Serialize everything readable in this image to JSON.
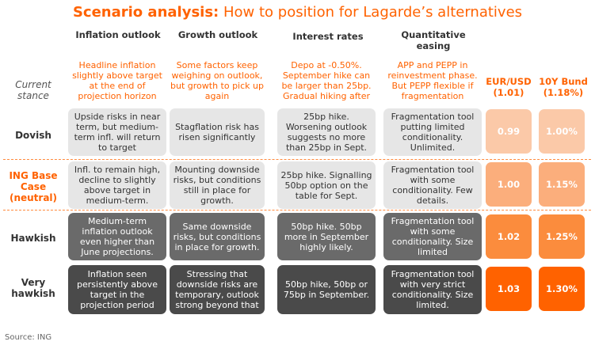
{
  "title": {
    "bold": "Scenario analysis:",
    "rest": "How to position for Lagarde’s alternatives"
  },
  "columns": {
    "inflation": "Inflation outlook",
    "growth": "Growth outlook",
    "rates": "Interest rates",
    "qe": "Quantitative easing",
    "eurusd": "EUR/USD (1.01)",
    "bund": "10Y Bund (1.18%)"
  },
  "rows": {
    "current": {
      "label": "Current stance",
      "inflation": "Headline inflation slightly above target at the end of projection horizon",
      "growth": "Some factors keep weighing on outlook, but growth to pick up again",
      "rates": "Depo at -0.50%. September hike can be larger than 25bp. Gradual hiking after",
      "qe": "APP and PEPP in reinvestment phase. But PEPP flexible if fragmentation"
    },
    "dovish": {
      "label": "Dovish",
      "inflation": "Upside risks in near term, but medium-term infl. will return to target",
      "growth": "Stagflation risk has risen significantly",
      "rates": "25bp hike. Worsening outlook suggests no more than 25bp in Sept.",
      "qe": "Fragmentation tool putting limited conditionality. Unlimited.",
      "eurusd": "0.99",
      "bund": "1.00%"
    },
    "base": {
      "label": "ING Base Case (neutral)",
      "inflation": "Infl. to remain high, decline to slightly above target in medium-term.",
      "growth": "Mounting downside risks, but conditions still in place for growth.",
      "rates": "25bp hike. Signalling 50bp option on the table for Sept.",
      "qe": "Fragmentation tool with some conditionality. Few details.",
      "eurusd": "1.00",
      "bund": "1.15%"
    },
    "hawkish": {
      "label": "Hawkish",
      "inflation": "Medium-term inflation outlook even higher than June projections.",
      "growth": "Same downside risks, but conditions in place for growth.",
      "rates": "50bp hike. 50bp more in September highly likely.",
      "qe": "Fragmentation tool with some conditionality. Size limited",
      "eurusd": "1.02",
      "bund": "1.25%"
    },
    "veryhawkish": {
      "label": "Very hawkish",
      "inflation": "Inflation seen persistently above target in the projection period",
      "growth": "Stressing that downside risks are temporary, outlook strong beyond that",
      "rates": "50bp hike, 50bp or 75bp in September.",
      "qe": "Fragmentation tool with very strict conditionality. Size limited.",
      "eurusd": "1.03",
      "bund": "1.30%"
    }
  },
  "colors": {
    "brand_orange": "#ff6200",
    "dovish_fill": "#fbc9a8",
    "base_fill": "#fbae7c",
    "hawkish_fill": "#fb8c3d",
    "veryhawkish_fill": "#ff6200"
  },
  "source": "Source: ING"
}
